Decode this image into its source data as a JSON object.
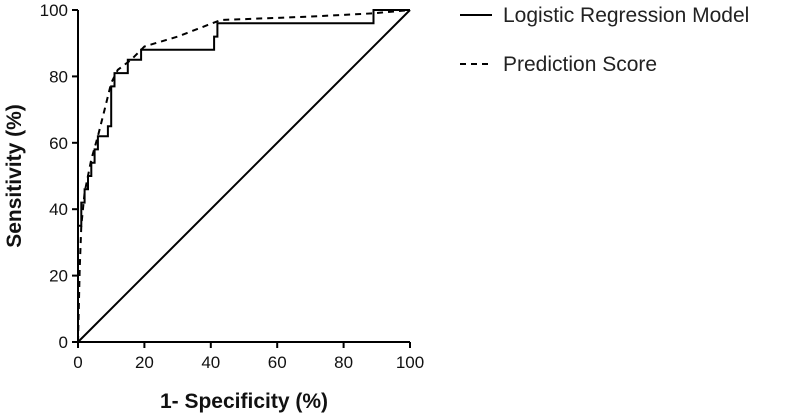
{
  "chart_data": {
    "type": "line",
    "xlabel": "1- Specificity (%)",
    "ylabel": "Sensitivity (%)",
    "xlim": [
      0,
      100
    ],
    "ylim": [
      0,
      100
    ],
    "xticks": [
      "0",
      "20",
      "40",
      "60",
      "80",
      "100"
    ],
    "yticks": [
      "0",
      "20",
      "40",
      "60",
      "80",
      "100"
    ],
    "grid": false,
    "legend_position": "top-right outside",
    "series": [
      {
        "name": "Logistic Regression Model",
        "style": "solid",
        "color": "#000000",
        "points": [
          [
            0,
            0
          ],
          [
            0,
            35
          ],
          [
            1,
            35
          ],
          [
            1,
            42
          ],
          [
            2,
            42
          ],
          [
            2,
            46
          ],
          [
            3,
            46
          ],
          [
            3,
            50
          ],
          [
            4,
            50
          ],
          [
            4,
            54
          ],
          [
            5,
            54
          ],
          [
            5,
            58
          ],
          [
            6,
            58
          ],
          [
            6,
            62
          ],
          [
            9,
            62
          ],
          [
            9,
            65
          ],
          [
            10,
            65
          ],
          [
            10,
            77
          ],
          [
            11,
            77
          ],
          [
            11,
            81
          ],
          [
            15,
            81
          ],
          [
            15,
            85
          ],
          [
            19,
            85
          ],
          [
            19,
            88
          ],
          [
            41,
            88
          ],
          [
            41,
            92
          ],
          [
            42,
            92
          ],
          [
            42,
            96
          ],
          [
            89,
            96
          ],
          [
            89,
            100
          ],
          [
            100,
            100
          ]
        ]
      },
      {
        "name": "Prediction Score",
        "style": "dashed",
        "color": "#000000",
        "points": [
          [
            0,
            0
          ],
          [
            0.5,
            22
          ],
          [
            1,
            35
          ],
          [
            2,
            45
          ],
          [
            4,
            55
          ],
          [
            6,
            62
          ],
          [
            8,
            70
          ],
          [
            10,
            78
          ],
          [
            12,
            82
          ],
          [
            16,
            85
          ],
          [
            20,
            89
          ],
          [
            30,
            92
          ],
          [
            43,
            97
          ],
          [
            70,
            98
          ],
          [
            89,
            99
          ],
          [
            100,
            100
          ]
        ]
      },
      {
        "name": "",
        "style": "solid",
        "color": "#000000",
        "role": "reference diagonal",
        "points": [
          [
            0,
            0
          ],
          [
            100,
            100
          ]
        ]
      }
    ]
  }
}
